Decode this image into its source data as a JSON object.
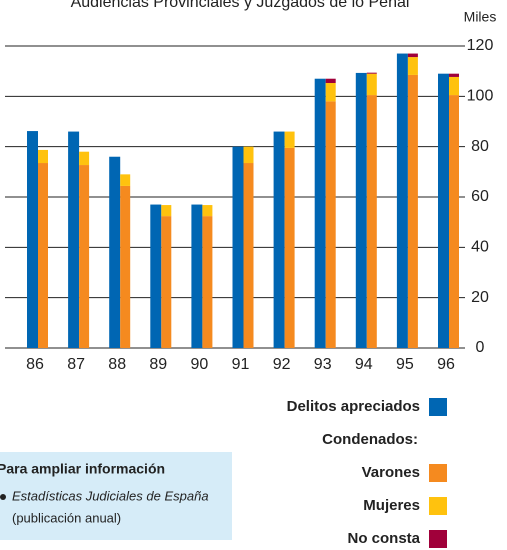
{
  "chart_data": {
    "type": "bar",
    "title": "Audiencias Provinciales y Juzgados de lo Penal",
    "y_label": "Miles",
    "categories": [
      "86",
      "87",
      "88",
      "89",
      "90",
      "91",
      "92",
      "93",
      "94",
      "95",
      "96"
    ],
    "series": [
      {
        "name": "Delitos apreciados",
        "color": "#0066b3",
        "values": [
          86.2,
          86,
          76,
          57,
          57,
          80,
          86,
          107,
          109.3,
          117,
          109
        ]
      },
      {
        "name": "Varones",
        "color": "#f58a1f",
        "stack": "Condenados:",
        "values": [
          73.5,
          72.7,
          64.4,
          52.4,
          52.4,
          73.5,
          79.5,
          98,
          100.5,
          108.5,
          100.5
        ]
      },
      {
        "name": "Mujeres",
        "color": "#ffc20e",
        "stack": "Condenados:",
        "values": [
          5.2,
          5.3,
          4.6,
          4.4,
          4.4,
          6.5,
          6.5,
          7.3,
          8.5,
          7.1,
          7.2
        ]
      },
      {
        "name": "No consta",
        "color": "#a0003a",
        "stack": "Condenados:",
        "values": [
          0,
          0,
          0,
          0,
          0,
          0,
          0,
          1.7,
          0.4,
          1.4,
          1.3
        ]
      }
    ],
    "ylim": [
      0,
      120
    ],
    "yticks": [
      0,
      20,
      40,
      60,
      80,
      100,
      120
    ],
    "grid": true
  },
  "info": {
    "title": "Para ampliar información",
    "items": [
      [
        "Estadísticas Judiciales de España",
        "(publicación anual)"
      ]
    ]
  }
}
